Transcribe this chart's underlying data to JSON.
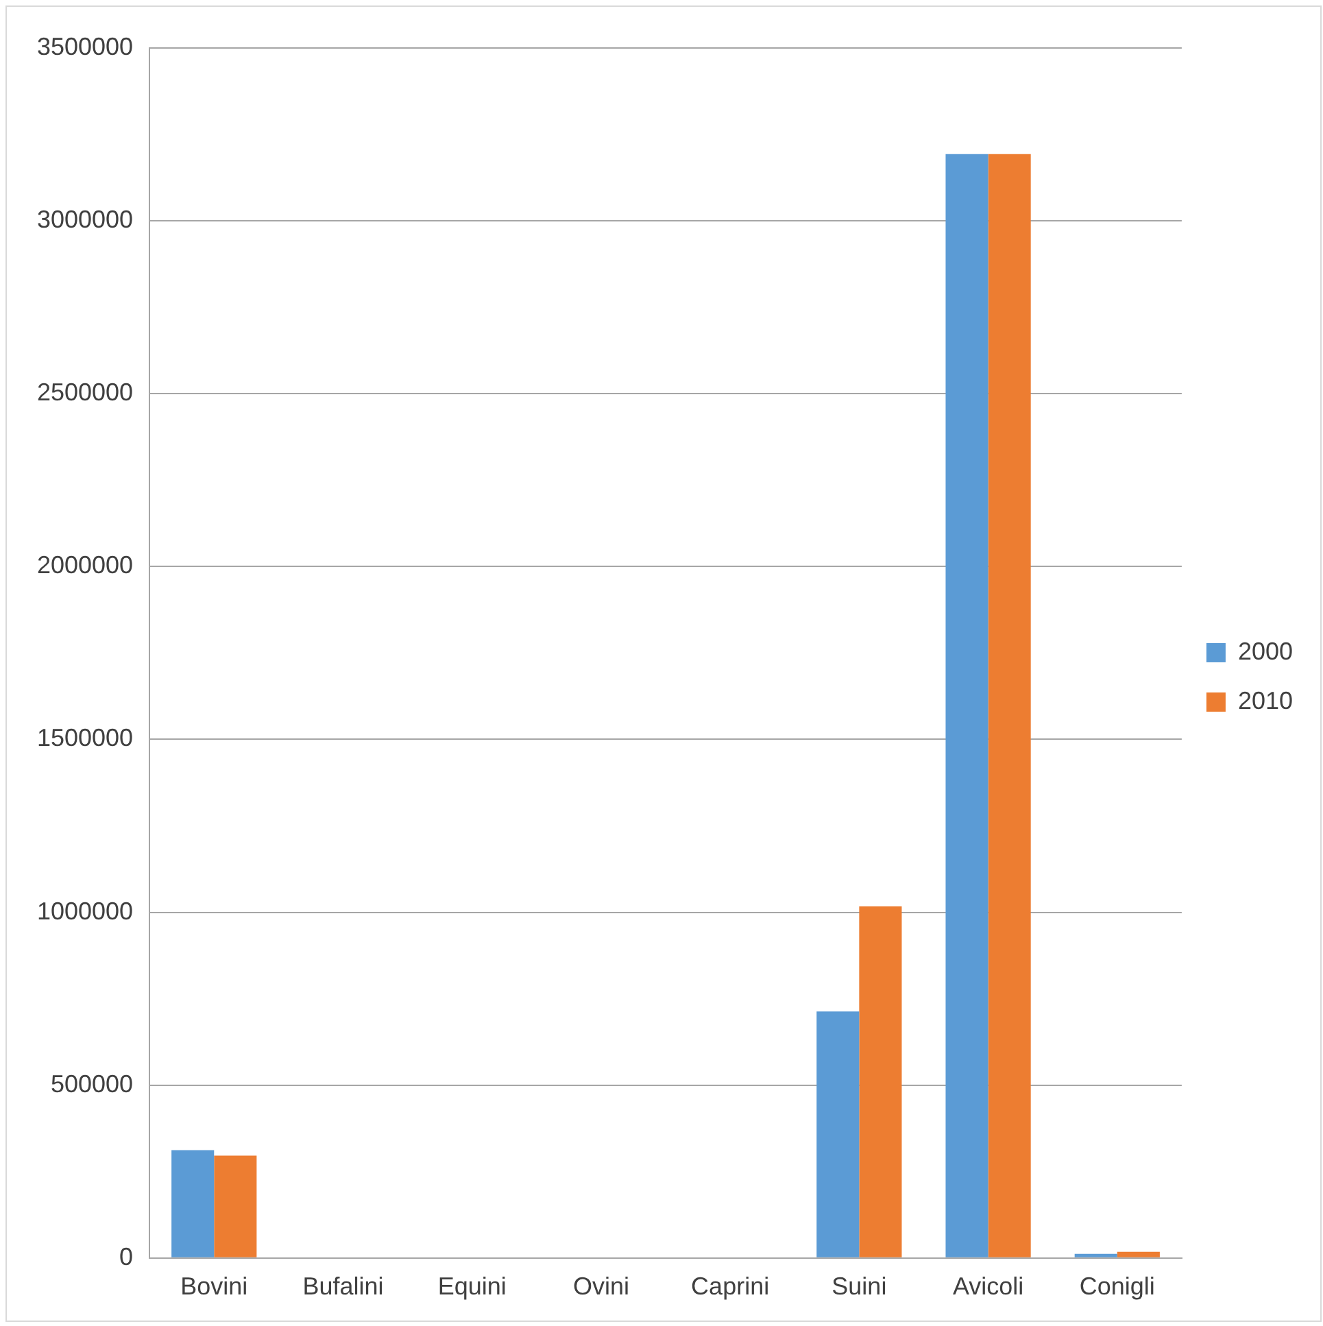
{
  "chart_data": {
    "type": "bar",
    "categories": [
      "Bovini",
      "Bufalini",
      "Equini",
      "Ovini",
      "Caprini",
      "Suini",
      "Avicoli",
      "Conigli"
    ],
    "series": [
      {
        "name": "2000",
        "color": "#5b9bd5",
        "values": [
          312000,
          0,
          0,
          0,
          0,
          713000,
          3193000,
          12000
        ]
      },
      {
        "name": "2010",
        "color": "#ed7d31",
        "values": [
          296000,
          0,
          0,
          0,
          0,
          1017000,
          3193000,
          18000
        ]
      }
    ],
    "ylim": [
      0,
      3500000
    ],
    "yticks": [
      0,
      500000,
      1000000,
      1500000,
      2000000,
      2500000,
      3000000,
      3500000
    ],
    "grid": "y",
    "legend": "right"
  }
}
